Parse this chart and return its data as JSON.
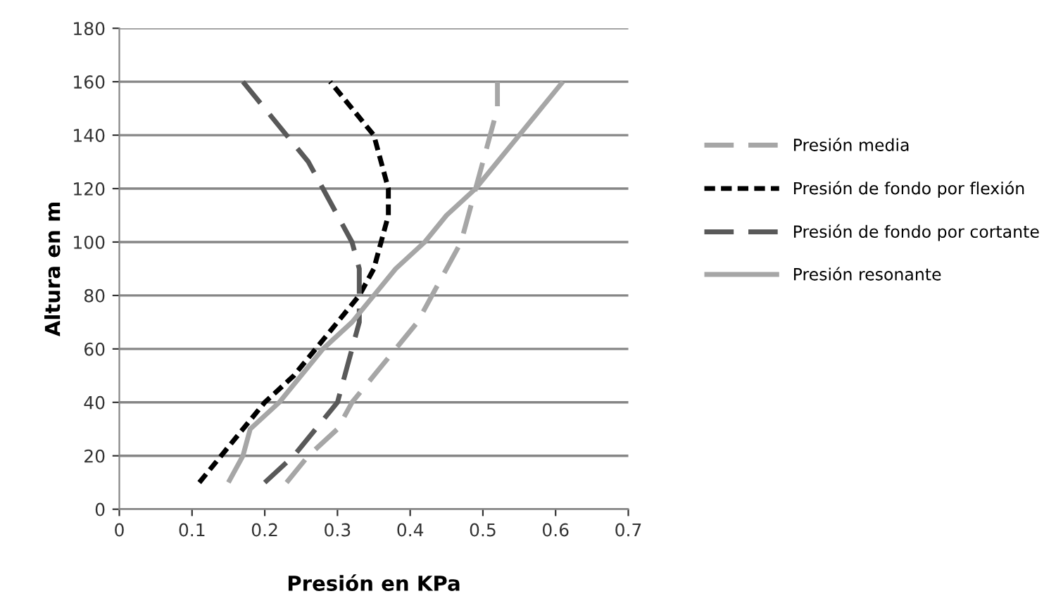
{
  "chart_data": {
    "type": "line",
    "xlabel": "Presión en KPa",
    "ylabel": "Altura en m",
    "xlim": [
      0,
      0.7
    ],
    "xticks": [
      0,
      0.1,
      0.2,
      0.3,
      0.4,
      0.5,
      0.6,
      0.7
    ],
    "ylim": [
      0,
      180
    ],
    "yticks": [
      0,
      20,
      40,
      60,
      80,
      100,
      120,
      140,
      160,
      180
    ],
    "grid": "y",
    "legend": "right",
    "marker": "none",
    "series": [
      {
        "name": "Presión media",
        "color": "#a6a6a6",
        "line_style": "dashed",
        "x": [
          0.23,
          0.26,
          0.3,
          0.32,
          0.35,
          0.38,
          0.41,
          0.43,
          0.45,
          0.47,
          0.48,
          0.49,
          0.5,
          0.51,
          0.52,
          0.52
        ],
        "values": [
          10,
          20,
          30,
          40,
          50,
          60,
          70,
          80,
          90,
          100,
          110,
          120,
          130,
          140,
          150,
          160
        ]
      },
      {
        "name": "Presión de fondo por flexión",
        "color": "#000000",
        "line_style": "dotted",
        "x": [
          0.11,
          0.14,
          0.17,
          0.2,
          0.24,
          0.27,
          0.3,
          0.33,
          0.35,
          0.36,
          0.37,
          0.37,
          0.36,
          0.35,
          0.32,
          0.29
        ],
        "values": [
          10,
          20,
          30,
          40,
          50,
          60,
          70,
          80,
          90,
          100,
          110,
          120,
          130,
          140,
          150,
          160
        ]
      },
      {
        "name": "Presión de fondo por cortante",
        "color": "#595959",
        "line_style": "dashed",
        "x": [
          0.2,
          0.24,
          0.27,
          0.3,
          0.31,
          0.32,
          0.33,
          0.33,
          0.33,
          0.32,
          0.3,
          0.28,
          0.26,
          0.23,
          0.2,
          0.17
        ],
        "values": [
          10,
          20,
          30,
          40,
          50,
          60,
          70,
          80,
          90,
          100,
          110,
          120,
          130,
          140,
          150,
          160
        ]
      },
      {
        "name": "Presión resonante",
        "color": "#a6a6a6",
        "line_style": "solid",
        "x": [
          0.15,
          0.17,
          0.18,
          0.22,
          0.25,
          0.28,
          0.32,
          0.35,
          0.38,
          0.42,
          0.45,
          0.49,
          0.52,
          0.55,
          0.58,
          0.61
        ],
        "values": [
          10,
          20,
          30,
          40,
          50,
          60,
          70,
          80,
          90,
          100,
          110,
          120,
          130,
          140,
          150,
          160
        ]
      }
    ]
  }
}
